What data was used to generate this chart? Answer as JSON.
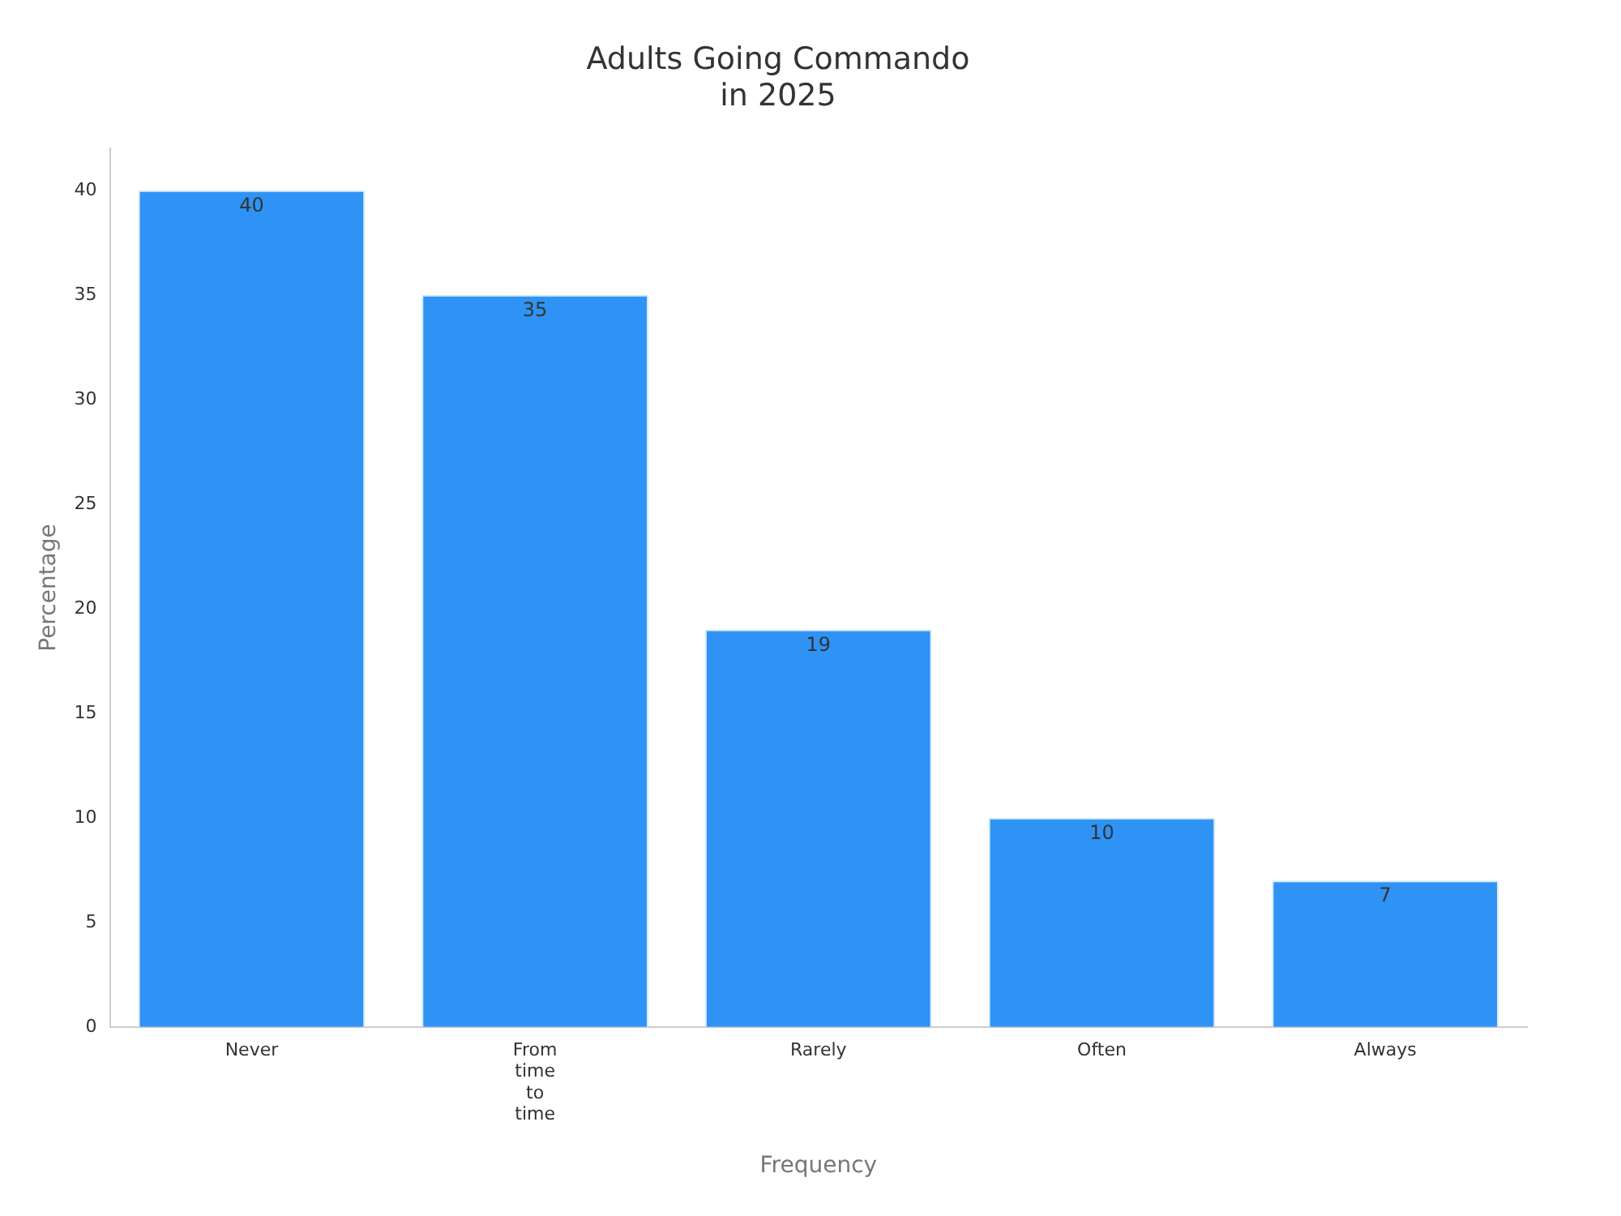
{
  "chart_data": {
    "type": "bar",
    "title": "Adults Going Commando\nin 2025",
    "xlabel": "Frequency",
    "ylabel": "Percentage",
    "categories": [
      "Never",
      "From time to time",
      "Rarely",
      "Often",
      "Always"
    ],
    "values": [
      40,
      35,
      19,
      10,
      7
    ],
    "color": "#2f93f5",
    "ylim": [
      0,
      42
    ],
    "yticks": [
      0,
      5,
      10,
      15,
      20,
      25,
      30,
      35,
      40
    ],
    "grid": false,
    "legend": false,
    "data_labels": true
  }
}
